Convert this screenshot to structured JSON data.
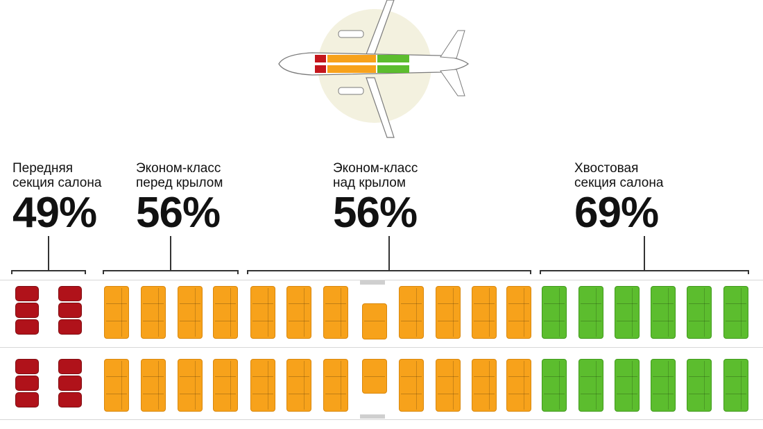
{
  "sections": [
    {
      "id": "front",
      "name_line1": "Передняя",
      "name_line2": "секция салона",
      "percent": "49%"
    },
    {
      "id": "pre_wing",
      "name_line1": "Эконом-класс",
      "name_line2": "перед крылом",
      "percent": "56%"
    },
    {
      "id": "over_wing",
      "name_line1": "Эконом-класс",
      "name_line2": "над крылом",
      "percent": "56%"
    },
    {
      "id": "tail",
      "name_line1": "Хвостовая",
      "name_line2": "секция салона",
      "percent": "69%"
    }
  ],
  "seat_rows_per_column": 2,
  "seat_groups": [
    {
      "section": "front",
      "color": "#c4161c",
      "columns": 2
    },
    {
      "section": "pre_wing",
      "color": "#f7a21b",
      "columns": 4
    },
    {
      "section": "over_wing",
      "color": "#f7a21b",
      "columns": 7
    },
    {
      "section": "tail",
      "color": "#5cbd2e",
      "columns": 6
    }
  ],
  "colors": {
    "front": "#c4161c",
    "economy": "#f7a21b",
    "tail": "#5cbd2e",
    "text": "#111111"
  },
  "icons": [
    "airplane-icon"
  ]
}
